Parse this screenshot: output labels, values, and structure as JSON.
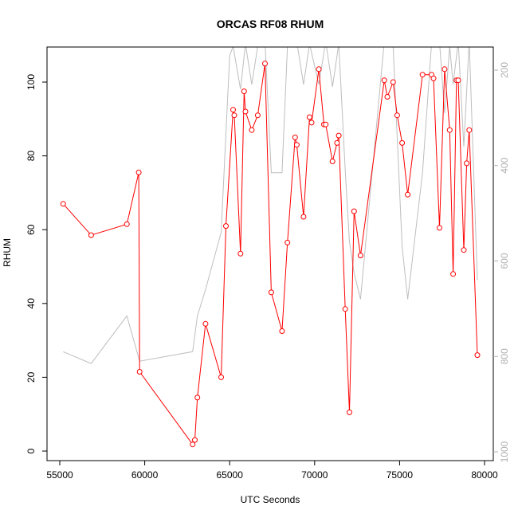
{
  "chart_data": {
    "type": "line",
    "title": "ORCAS RF08 RHUM",
    "xlabel": "UTC Seconds",
    "ylabel": "RHUM",
    "xlim": [
      55000,
      80000
    ],
    "ylim": [
      0,
      110
    ],
    "y2lim": [
      1000,
      180
    ],
    "x_ticks": [
      55000,
      60000,
      65000,
      70000,
      75000,
      80000
    ],
    "y_ticks": [
      0,
      20,
      40,
      60,
      80,
      100
    ],
    "y2_ticks": [
      200,
      400,
      600,
      800,
      1000
    ],
    "grid": false,
    "series": [
      {
        "color": "#ff0000",
        "marker": "open-circle",
        "axis": "left",
        "x": [
          55200,
          56850,
          58950,
          59650,
          59700,
          62820,
          62950,
          63100,
          63580,
          64500,
          64780,
          65200,
          65270,
          65640,
          65850,
          65930,
          66300,
          66650,
          67080,
          67450,
          68080,
          68400,
          68850,
          68950,
          69350,
          69700,
          69820,
          70250,
          70550,
          70650,
          71050,
          71320,
          71420,
          71800,
          72050,
          72320,
          72700,
          74100,
          74280,
          74620,
          74860,
          75150,
          75480,
          76350,
          76880,
          77000,
          77350,
          77650,
          77950,
          78150,
          78350,
          78450,
          78780,
          78950,
          79100,
          79580
        ],
        "y": [
          67,
          58.5,
          61.5,
          75.5,
          21.5,
          1.8,
          3,
          14.5,
          34.5,
          20,
          61,
          92.5,
          91,
          53.5,
          97.5,
          92,
          87,
          91,
          105,
          43,
          32.5,
          56.5,
          85,
          83,
          63.5,
          90.5,
          89,
          103.5,
          88.5,
          88.5,
          78.5,
          83.5,
          85.5,
          38.5,
          10.5,
          65,
          53,
          100.5,
          96,
          100,
          91,
          83.5,
          69.5,
          102,
          102,
          101,
          60.5,
          103.5,
          87,
          48,
          100.5,
          100.5,
          54.5,
          78,
          87,
          26
        ]
      },
      {
        "color": "#bebebe",
        "marker": "none",
        "axis": "right",
        "x": [
          55200,
          56850,
          58950,
          59700,
          62820,
          63100,
          63580,
          64500,
          65000,
          65200,
          65640,
          65930,
          66300,
          66650,
          67080,
          67450,
          68080,
          68400,
          68950,
          69350,
          69700,
          70250,
          70650,
          71050,
          71420,
          71800,
          72050,
          72320,
          72700,
          74100,
          74620,
          75150,
          75480,
          76350,
          76880,
          77350,
          77650,
          77950,
          78150,
          78450,
          78780,
          79100,
          79580
        ],
        "y": [
          790,
          815,
          715,
          810,
          790,
          715,
          660,
          540,
          170,
          150,
          240,
          145,
          230,
          150,
          140,
          415,
          415,
          150,
          140,
          230,
          145,
          230,
          140,
          235,
          145,
          410,
          560,
          625,
          680,
          140,
          150,
          570,
          680,
          415,
          145,
          140,
          290,
          150,
          230,
          140,
          360,
          140,
          640
        ]
      }
    ]
  }
}
